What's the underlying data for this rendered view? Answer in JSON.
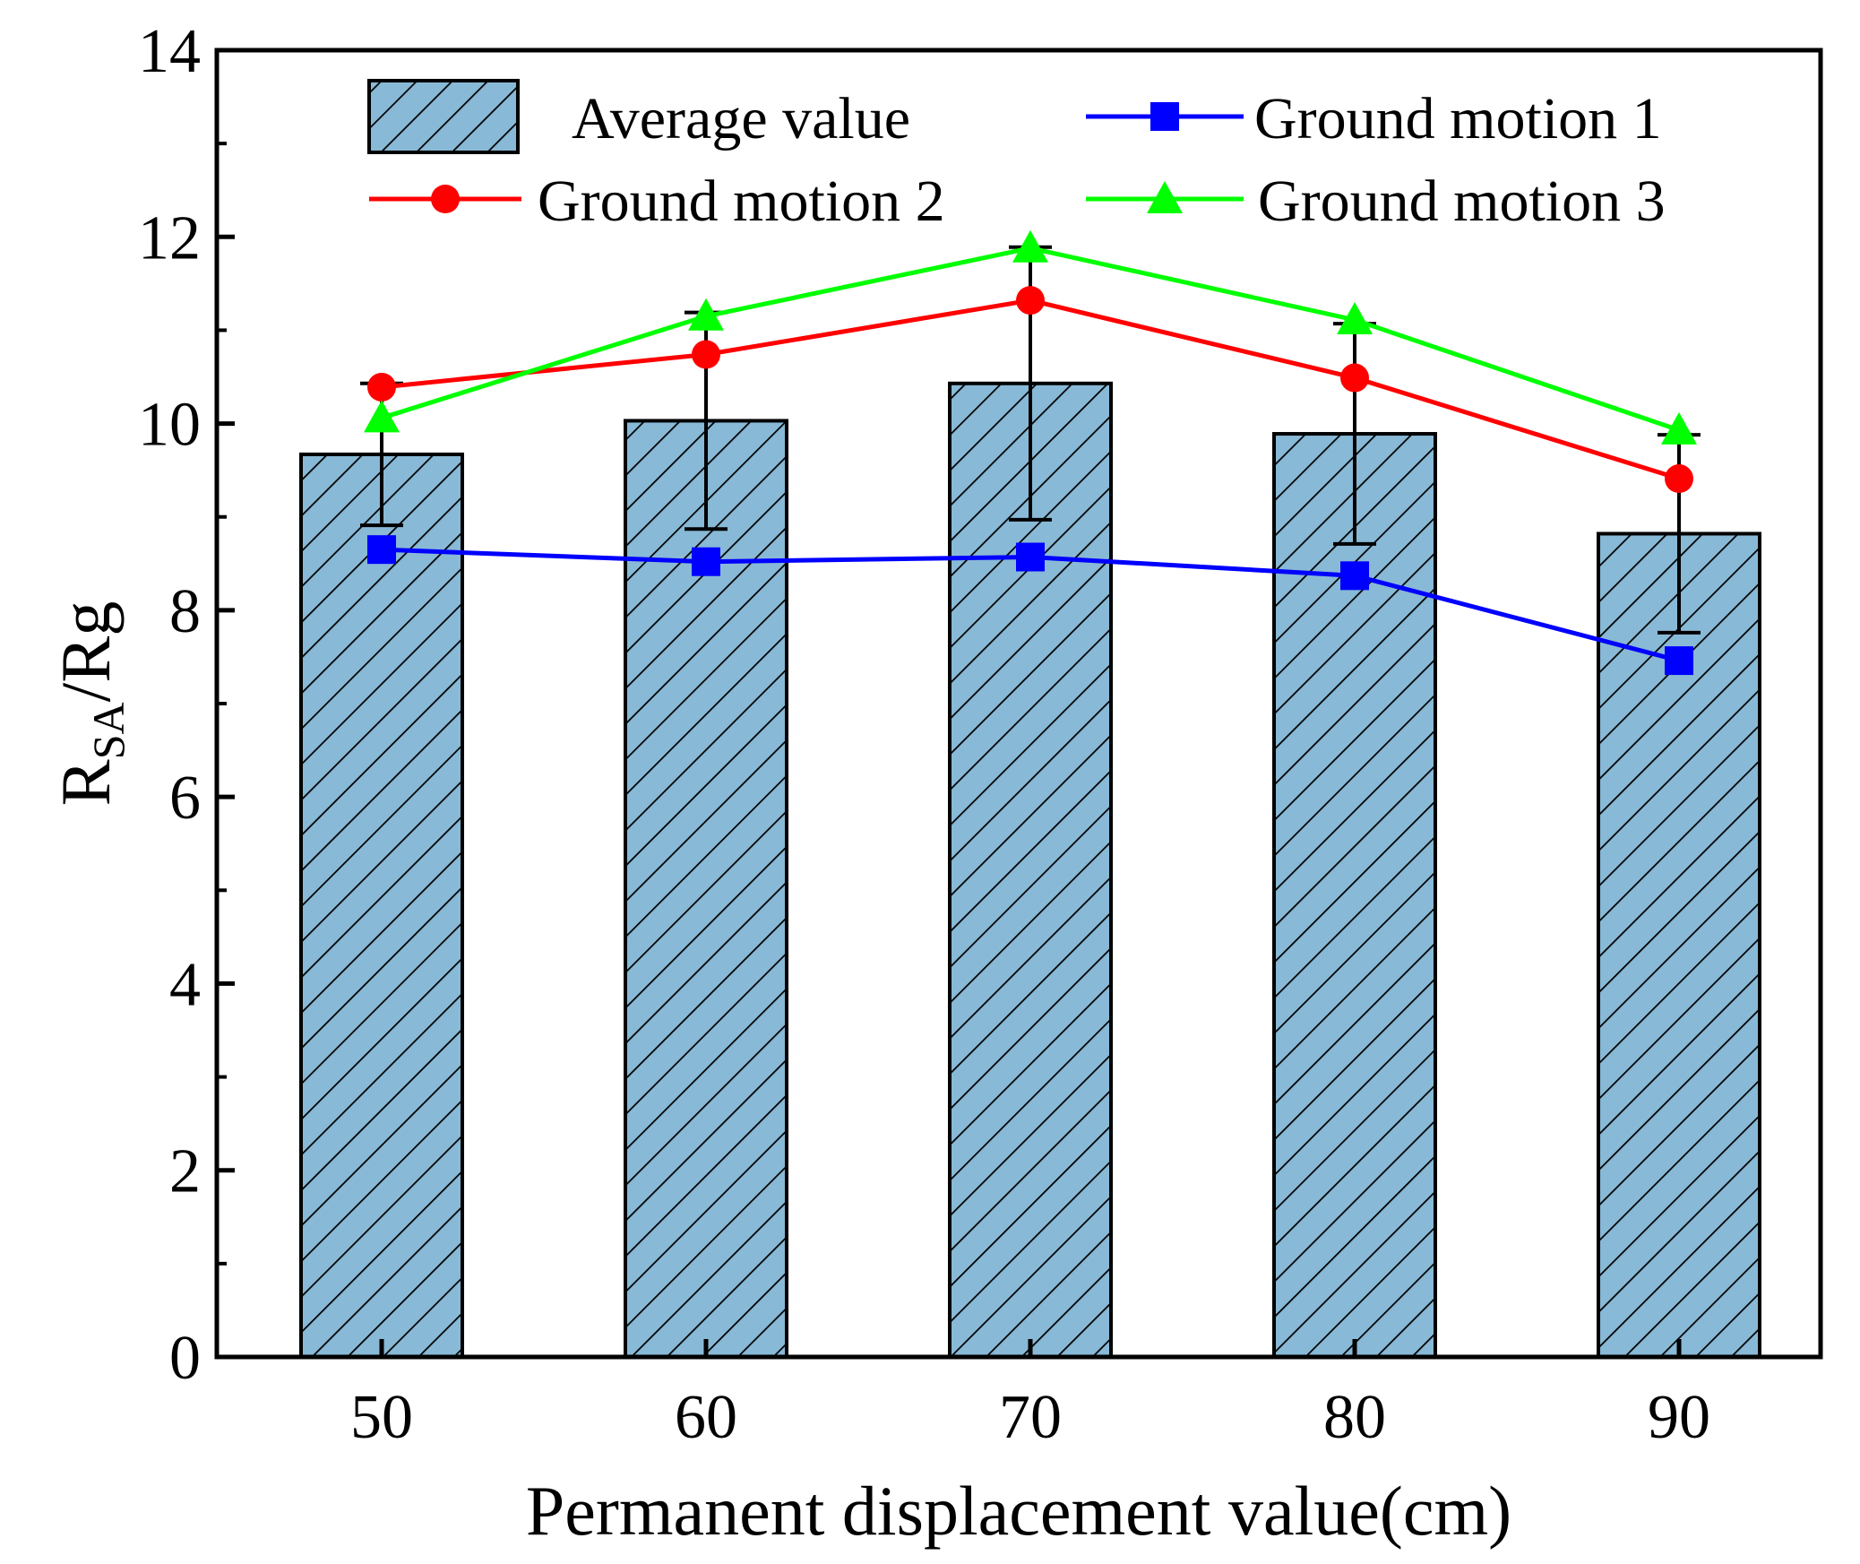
{
  "chart_data": {
    "type": "bar",
    "xlabel": "Permanent displacement value(cm)",
    "ylabel": {
      "main": "R",
      "sub": "SA",
      "suffix": "/Rg"
    },
    "ylim": [
      0,
      14
    ],
    "yticks": [
      "0",
      "2",
      "4",
      "6",
      "8",
      "10",
      "12",
      "14"
    ],
    "categories": [
      "50",
      "60",
      "70",
      "80",
      "90"
    ],
    "bars": {
      "name": "Average value",
      "values": [
        9.67,
        10.03,
        10.43,
        9.89,
        8.82
      ],
      "errors": [
        0.76,
        1.16,
        1.46,
        1.18,
        1.06
      ],
      "fill": "#88b9d6",
      "hatch": "#000000"
    },
    "series": [
      {
        "name": "Ground motion 1",
        "values": [
          8.65,
          8.52,
          8.57,
          8.37,
          7.46
        ],
        "color": "#0000ff",
        "marker": "square"
      },
      {
        "name": "Ground motion 2",
        "values": [
          10.39,
          10.74,
          11.32,
          10.49,
          9.41
        ],
        "color": "#ff0000",
        "marker": "circle"
      },
      {
        "name": "Ground motion 3",
        "values": [
          10.06,
          11.15,
          11.88,
          11.11,
          9.93
        ],
        "color": "#00ff00",
        "marker": "triangle"
      }
    ]
  }
}
